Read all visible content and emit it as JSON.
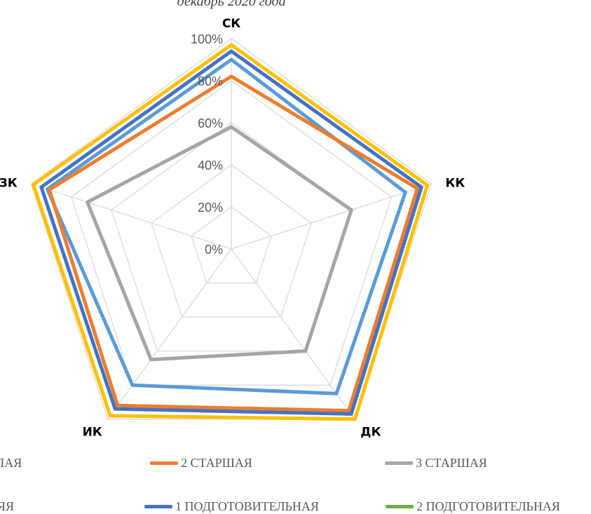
{
  "chart_data": {
    "type": "radar",
    "title": "декабрь 2020 года",
    "axes": [
      "СК",
      "КК",
      "ДК",
      "ИК",
      "ЗК"
    ],
    "rlim": [
      0,
      1
    ],
    "ticks": [
      "0%",
      "20%",
      "40%",
      "60%",
      "80%",
      "100%"
    ],
    "grid": true,
    "legend_position": "bottom",
    "series": [
      {
        "name": "",
        "color": "#5B9BD5",
        "values": [
          0.9,
          0.87,
          0.85,
          0.8,
          0.92
        ]
      },
      {
        "name": "2 СТАРШАЯ",
        "color": "#ED7D31",
        "values": [
          0.82,
          0.93,
          0.95,
          0.92,
          0.91
        ]
      },
      {
        "name": "3 СТАРШАЯ",
        "color": "#A5A5A5",
        "values": [
          0.58,
          0.6,
          0.6,
          0.65,
          0.72
        ]
      },
      {
        "name": "1 ПОДГОТОВИТЕЛЬНАЯ",
        "color": "#4472C4",
        "values": [
          0.94,
          0.95,
          0.97,
          0.94,
          0.95
        ]
      },
      {
        "name": "2 ПОДГОТОВИТЕЛЬНАЯ",
        "color": "#70AD47",
        "values": []
      },
      {
        "name": "",
        "color": "#FFC000",
        "values": [
          0.97,
          0.98,
          1.0,
          0.98,
          0.99
        ]
      }
    ]
  },
  "legend": {
    "row1_left_fragment": "ЛАЯ",
    "row2_left_fragment": "ЯЯ"
  }
}
